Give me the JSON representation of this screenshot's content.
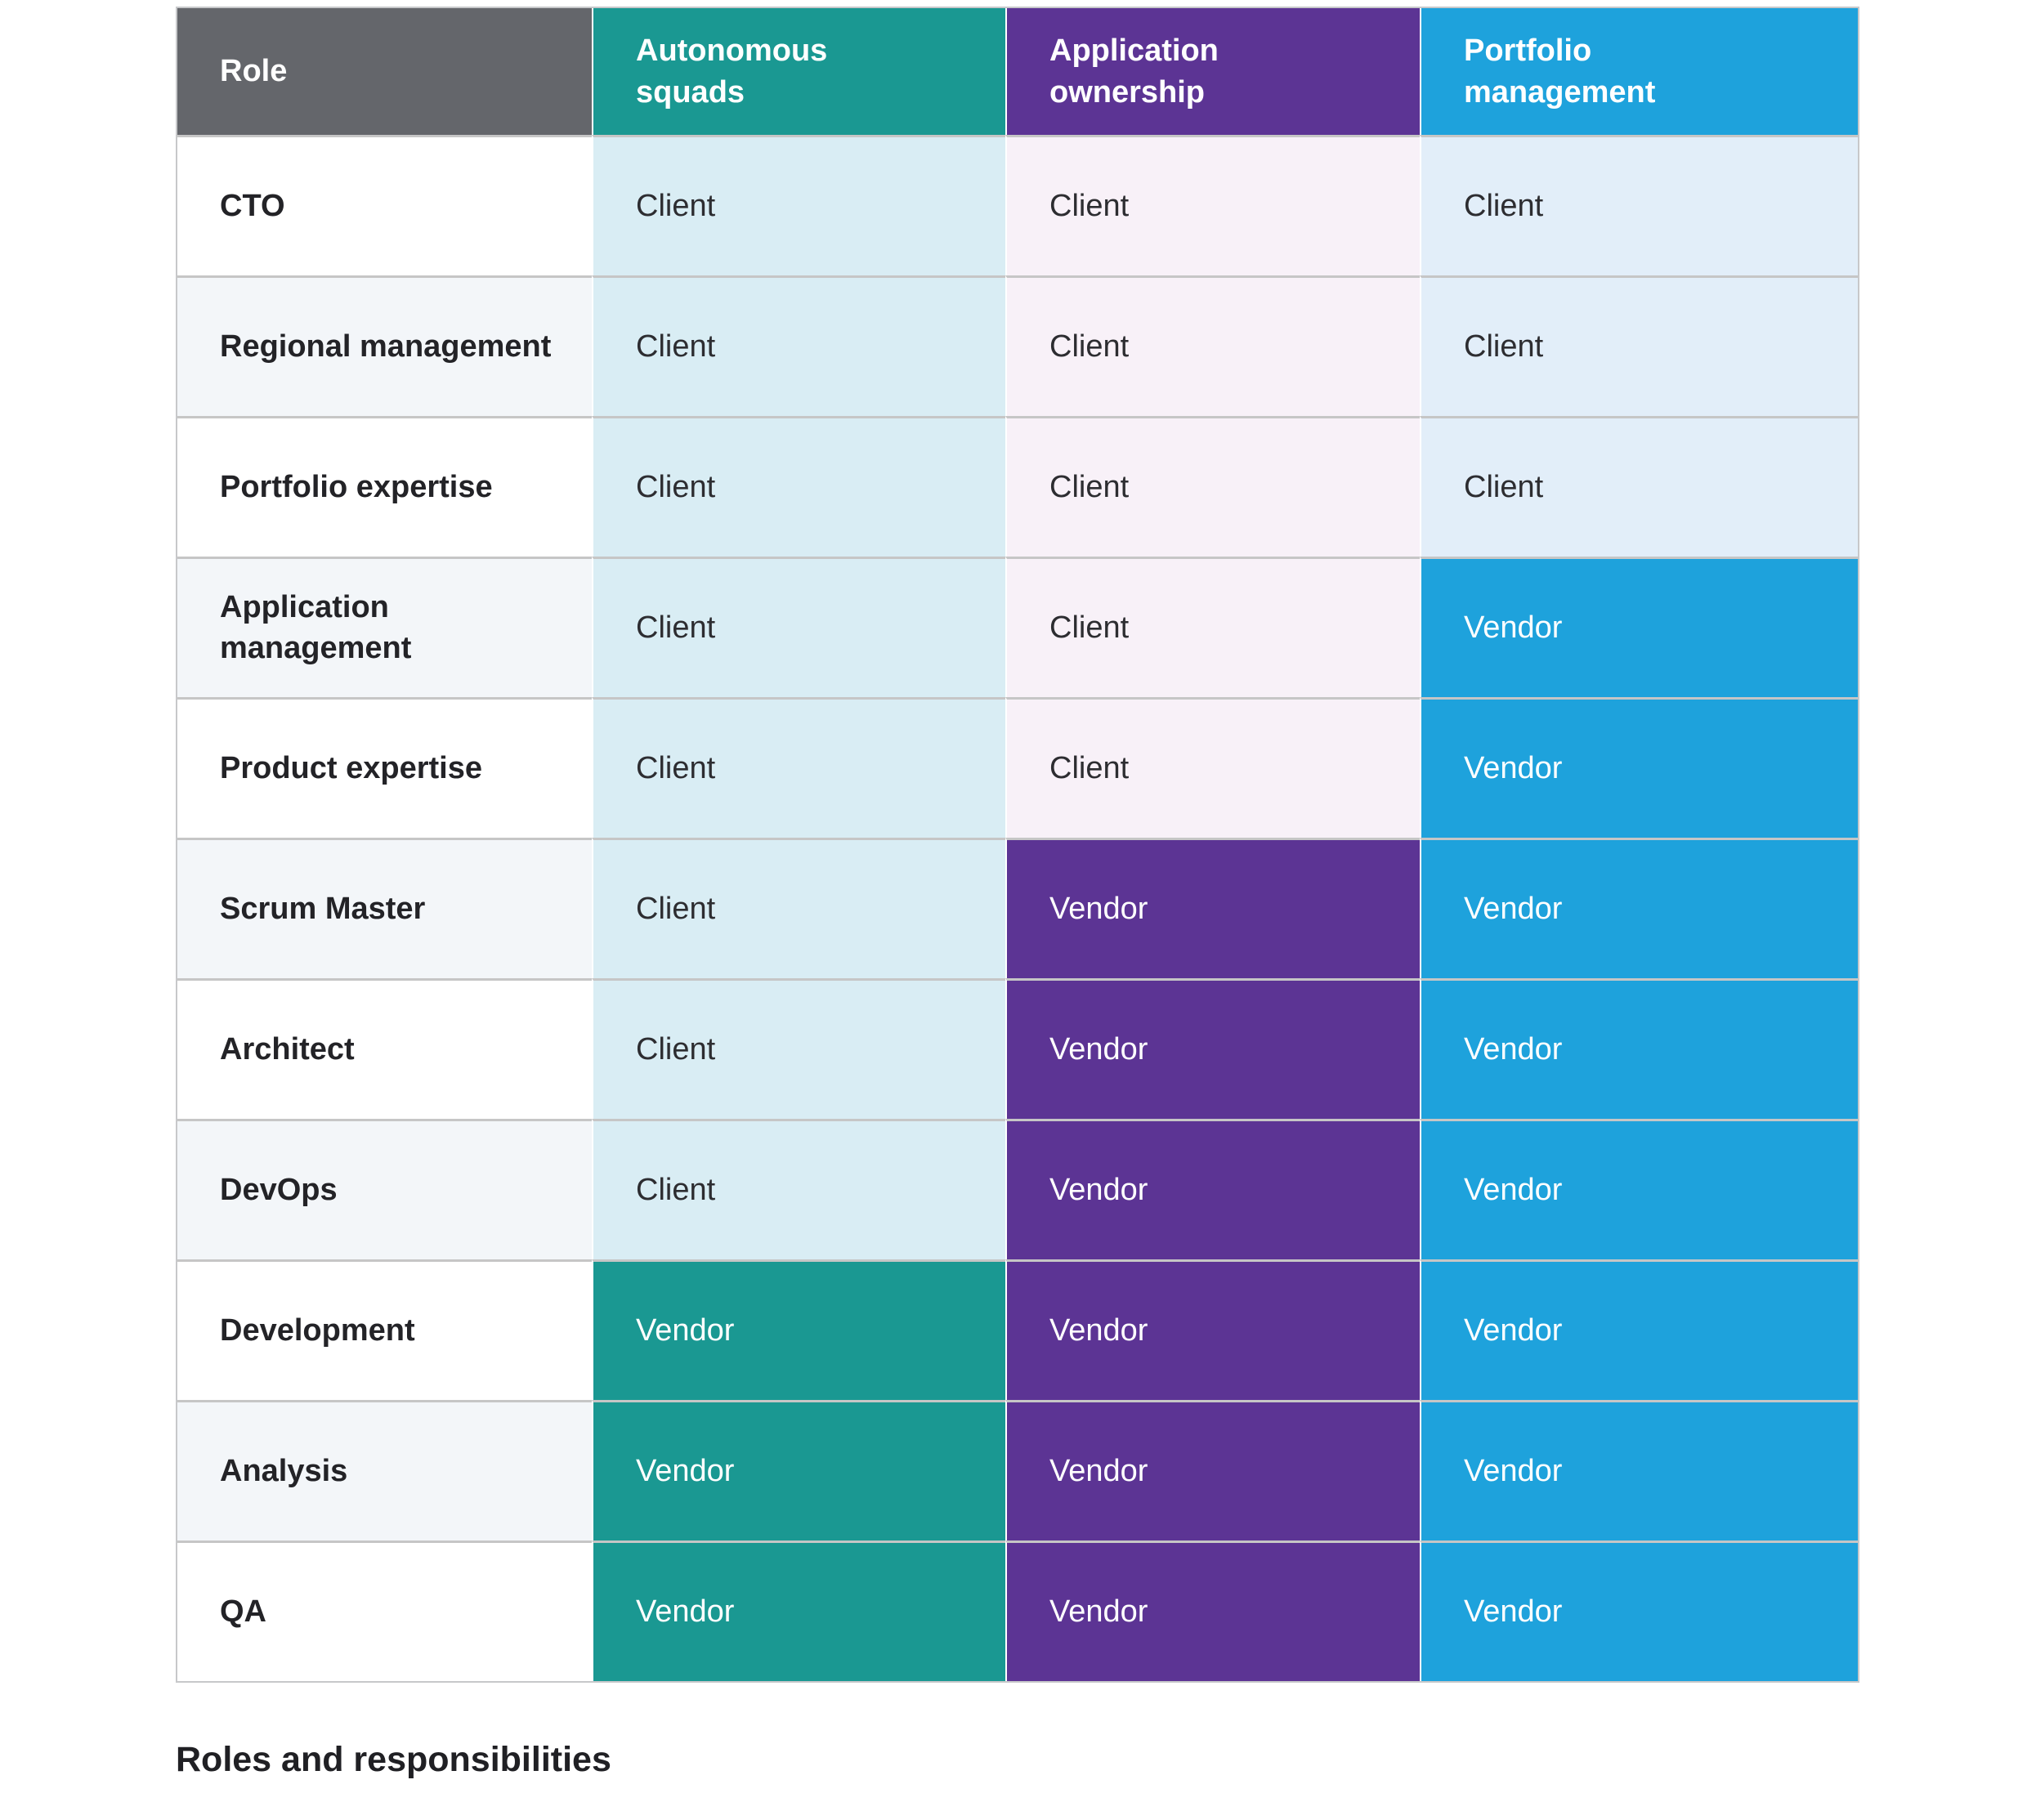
{
  "caption": "Roles and responsibilities",
  "table": {
    "columns": [
      {
        "id": "role",
        "label": "Role",
        "header_color": "#64666B"
      },
      {
        "id": "autonomous-squads",
        "label": "Autonomous squads",
        "header_color": "#1A9892"
      },
      {
        "id": "application-ownership",
        "label": "Application ownership",
        "header_color": "#5C3494"
      },
      {
        "id": "portfolio-management",
        "label": "Portfolio management",
        "header_color": "#1EA2DC"
      }
    ],
    "rows": [
      {
        "role": "CTO",
        "cells": [
          "Client",
          "Client",
          "Client"
        ]
      },
      {
        "role": "Regional management",
        "cells": [
          "Client",
          "Client",
          "Client"
        ]
      },
      {
        "role": "Portfolio expertise",
        "cells": [
          "Client",
          "Client",
          "Client"
        ]
      },
      {
        "role": "Application management",
        "cells": [
          "Client",
          "Client",
          "Vendor"
        ]
      },
      {
        "role": "Product expertise",
        "cells": [
          "Client",
          "Client",
          "Vendor"
        ]
      },
      {
        "role": "Scrum Master",
        "cells": [
          "Client",
          "Vendor",
          "Vendor"
        ]
      },
      {
        "role": "Architect",
        "cells": [
          "Client",
          "Vendor",
          "Vendor"
        ]
      },
      {
        "role": "DevOps",
        "cells": [
          "Client",
          "Vendor",
          "Vendor"
        ]
      },
      {
        "role": "Development",
        "cells": [
          "Vendor",
          "Vendor",
          "Vendor"
        ]
      },
      {
        "role": "Analysis",
        "cells": [
          "Vendor",
          "Vendor",
          "Vendor"
        ]
      },
      {
        "role": "QA",
        "cells": [
          "Vendor",
          "Vendor",
          "Vendor"
        ]
      }
    ]
  },
  "cell_values": {
    "client_label": "Client",
    "vendor_label": "Vendor"
  },
  "colors": {
    "header_gray": "#64666B",
    "teal": "#1A9892",
    "purple": "#5C3494",
    "blue": "#1EA2DC",
    "light_teal": "#D9EDF4",
    "light_pink": "#F8F1F8",
    "light_blue": "#E2EEF9",
    "row_alt_background": "#F3F6F9",
    "row_border": "#C6C6C6",
    "header_text": "#FFFFFF",
    "body_text": "#2D2D31"
  }
}
